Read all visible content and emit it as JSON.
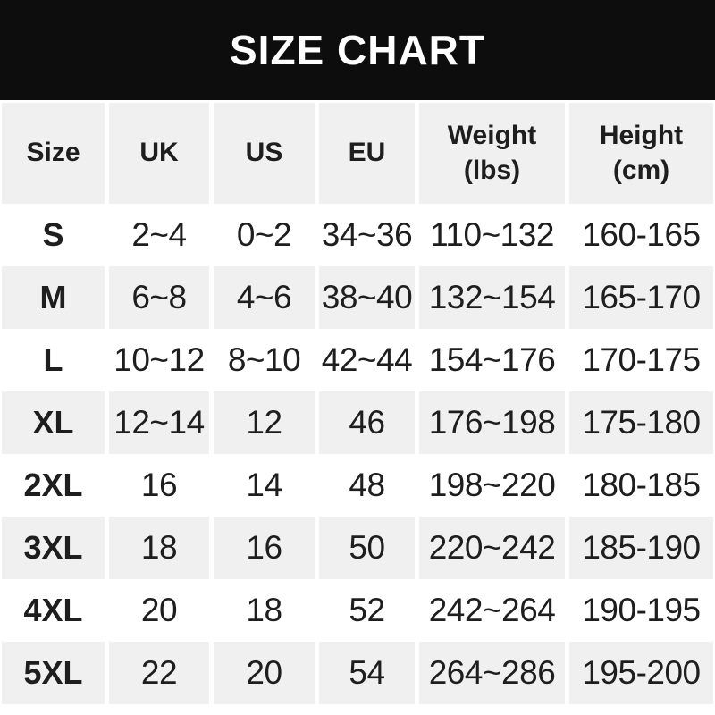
{
  "title": "SIZE CHART",
  "colors": {
    "page_bg": "#ffffff",
    "banner_bg": "#0d0d0d",
    "banner_text": "#ffffff",
    "alt_row_bg": "#f0f0f0",
    "text": "#1e1e1e"
  },
  "table": {
    "headers": [
      {
        "line1": "Size",
        "line2": ""
      },
      {
        "line1": "UK",
        "line2": ""
      },
      {
        "line1": "US",
        "line2": ""
      },
      {
        "line1": "EU",
        "line2": ""
      },
      {
        "line1": "Weight",
        "line2": "(lbs)"
      },
      {
        "line1": "Height",
        "line2": "(cm)"
      }
    ]
  },
  "chart_data": {
    "type": "table",
    "title": "SIZE CHART",
    "columns": [
      "Size",
      "UK",
      "US",
      "EU",
      "Weight (lbs)",
      "Height (cm)"
    ],
    "rows": [
      [
        "S",
        "2~4",
        "0~2",
        "34~36",
        "110~132",
        "160-165"
      ],
      [
        "M",
        "6~8",
        "4~6",
        "38~40",
        "132~154",
        "165-170"
      ],
      [
        "L",
        "10~12",
        "8~10",
        "42~44",
        "154~176",
        "170-175"
      ],
      [
        "XL",
        "12~14",
        "12",
        "46",
        "176~198",
        "175-180"
      ],
      [
        "2XL",
        "16",
        "14",
        "48",
        "198~220",
        "180-185"
      ],
      [
        "3XL",
        "18",
        "16",
        "50",
        "220~242",
        "185-190"
      ],
      [
        "4XL",
        "20",
        "18",
        "52",
        "242~264",
        "190-195"
      ],
      [
        "5XL",
        "22",
        "20",
        "54",
        "264~286",
        "195-200"
      ]
    ],
    "layout": {
      "alternating_row_shading": true,
      "shaded_rows": [
        "header",
        "M",
        "XL",
        "3XL",
        "5XL"
      ],
      "range_separator_sizes": "~",
      "range_separator_height": "-"
    }
  }
}
